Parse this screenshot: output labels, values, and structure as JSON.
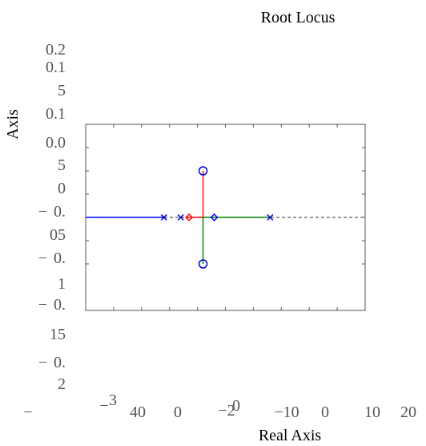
{
  "chart_data": {
    "type": "line",
    "title": "Root Locus",
    "xlabel": "Real Axis",
    "ylabel": "Axis",
    "xlim": [
      -35,
      15
    ],
    "ylim": [
      -0.2,
      0.2
    ],
    "y_tick_labels": [
      "0.2",
      "0.1",
      "5",
      "0.1",
      "0.0",
      "5",
      "0",
      "−",
      "0.",
      "05",
      "−",
      "0.",
      "1",
      "−",
      "0.",
      "15",
      "−",
      "0.",
      "2"
    ],
    "x_tick_labels": [
      "−",
      "−",
      "3",
      "40",
      "0",
      "−2",
      "0",
      "−10",
      "0",
      "10",
      "20"
    ],
    "colors": {
      "red": "#ff0000",
      "green": "#008000",
      "blue": "#0000ff",
      "axis_blue": "#0000cc",
      "ref": "#333333"
    },
    "series": [
      {
        "color": "red",
        "points": [
          [
            -14,
            0.0
          ],
          [
            -14,
            0.1
          ]
        ]
      },
      {
        "color": "red",
        "points": [
          [
            -17,
            0.0
          ],
          [
            -14,
            0.0
          ]
        ]
      },
      {
        "color": "green",
        "points": [
          [
            -14,
            0.0
          ],
          [
            -14,
            -0.1
          ]
        ]
      },
      {
        "color": "green",
        "points": [
          [
            -14,
            0.0
          ],
          [
            -2,
            0.0
          ]
        ]
      },
      {
        "color": "blue",
        "points": [
          [
            -35,
            0.0
          ],
          [
            -21,
            0.0
          ]
        ]
      }
    ],
    "poles": [
      [
        -21,
        0.0
      ],
      [
        -18,
        0.0
      ],
      [
        -2,
        0.0
      ]
    ],
    "zeros": [
      [
        -14,
        0.1
      ],
      [
        -14,
        -0.1
      ]
    ],
    "breakaway": [
      [
        -16.5,
        0.0
      ],
      [
        -12,
        0.0
      ]
    ]
  }
}
